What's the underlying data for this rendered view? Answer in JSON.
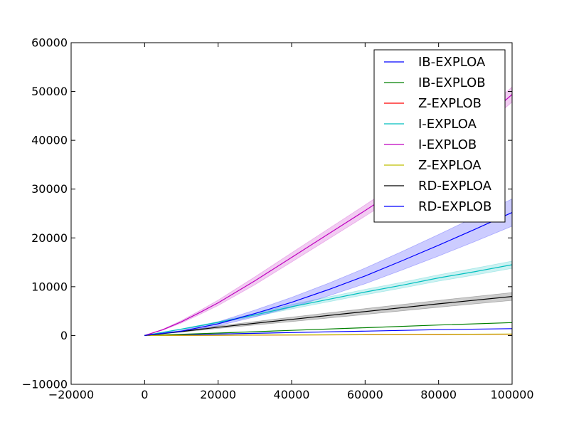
{
  "chart_data": {
    "type": "line",
    "title": "",
    "xlabel": "",
    "ylabel": "",
    "xlim": [
      -20000,
      100000
    ],
    "ylim": [
      -10000,
      60000
    ],
    "xticks": [
      -20000,
      0,
      20000,
      40000,
      60000,
      80000,
      100000
    ],
    "yticks": [
      -10000,
      0,
      10000,
      20000,
      30000,
      40000,
      50000,
      60000
    ],
    "xtick_labels": [
      "−20000",
      "0",
      "20000",
      "40000",
      "60000",
      "80000",
      "100000"
    ],
    "ytick_labels": [
      "−10000",
      "0",
      "10000",
      "20000",
      "30000",
      "40000",
      "50000",
      "60000"
    ],
    "grid": false,
    "legend_position": "top-right",
    "series": [
      {
        "name": "IB-EXPLOA",
        "color": "#0000ff",
        "band": false,
        "x": [
          0,
          10000,
          20000,
          40000,
          60000,
          80000,
          100000
        ],
        "y": [
          0,
          150,
          300,
          600,
          900,
          1200,
          1400
        ],
        "err": [
          0,
          0,
          0,
          0,
          0,
          0,
          0
        ]
      },
      {
        "name": "IB-EXPLOB",
        "color": "#008000",
        "band": false,
        "x": [
          0,
          10000,
          20000,
          40000,
          60000,
          80000,
          100000
        ],
        "y": [
          0,
          250,
          500,
          1050,
          1600,
          2150,
          2650
        ],
        "err": [
          0,
          0,
          0,
          0,
          0,
          0,
          0
        ]
      },
      {
        "name": "Z-EXPLOB",
        "color": "#ff0000",
        "band": false,
        "x": [
          0,
          20000,
          40000,
          60000,
          80000,
          100000
        ],
        "y": [
          0,
          50,
          100,
          150,
          200,
          250
        ],
        "err": [
          0,
          0,
          0,
          0,
          0,
          0
        ]
      },
      {
        "name": "I-EXPLOA",
        "color": "#00bfbf",
        "band": true,
        "x": [
          0,
          10000,
          20000,
          30000,
          40000,
          50000,
          60000,
          70000,
          80000,
          90000,
          100000
        ],
        "y": [
          0,
          1300,
          2700,
          4200,
          5900,
          7400,
          8900,
          10300,
          11800,
          13100,
          14500
        ],
        "err": [
          0,
          50,
          150,
          300,
          450,
          500,
          550,
          600,
          650,
          700,
          750
        ]
      },
      {
        "name": "I-EXPLOB",
        "color": "#bf00bf",
        "band": true,
        "x": [
          0,
          5000,
          10000,
          15000,
          20000,
          30000,
          40000,
          50000,
          60000,
          70000,
          80000,
          90000,
          100000
        ],
        "y": [
          0,
          1200,
          2800,
          4700,
          6700,
          11200,
          16000,
          20800,
          25600,
          30500,
          35500,
          42800,
          49400
        ],
        "err": [
          0,
          100,
          250,
          400,
          550,
          800,
          950,
          1050,
          1150,
          1250,
          1350,
          1450,
          1550
        ]
      },
      {
        "name": "Z-EXPLOA",
        "color": "#bfbf00",
        "band": false,
        "x": [
          0,
          20000,
          40000,
          60000,
          80000,
          100000
        ],
        "y": [
          0,
          60,
          120,
          180,
          240,
          300
        ],
        "err": [
          0,
          0,
          0,
          0,
          0,
          0
        ]
      },
      {
        "name": "RD-EXPLOA",
        "color": "#000000",
        "band": true,
        "x": [
          0,
          10000,
          20000,
          40000,
          60000,
          80000,
          100000
        ],
        "y": [
          0,
          800,
          1700,
          3300,
          4900,
          6500,
          8000
        ],
        "err": [
          0,
          100,
          250,
          450,
          600,
          700,
          800
        ]
      },
      {
        "name": "RD-EXPLOB",
        "color": "#0000ff",
        "band": true,
        "x": [
          0,
          10000,
          20000,
          30000,
          40000,
          50000,
          60000,
          70000,
          80000,
          90000,
          100000
        ],
        "y": [
          0,
          900,
          2400,
          4500,
          6800,
          9400,
          12200,
          15300,
          18500,
          21800,
          25200
        ],
        "err": [
          0,
          150,
          400,
          700,
          1000,
          1300,
          1600,
          1900,
          2200,
          2500,
          2800
        ]
      }
    ]
  }
}
